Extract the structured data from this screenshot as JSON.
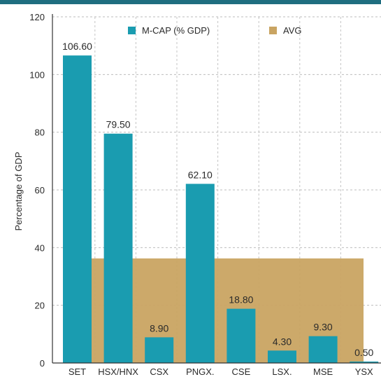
{
  "chart_data": {
    "type": "bar",
    "title": "",
    "xlabel": "",
    "ylabel": "Percentage of GDP",
    "ylim": [
      0,
      120
    ],
    "yticks": [
      0,
      20,
      40,
      60,
      80,
      100,
      120
    ],
    "grid": true,
    "legend_position": "top",
    "categories": [
      "SET",
      "HSX/HNX",
      "CSX",
      "PNGX.",
      "CSE",
      "LSX.",
      "MSE",
      "YSX"
    ],
    "series": [
      {
        "name": "M-CAP (% GDP)",
        "color": "#1a9cb0",
        "values": [
          106.6,
          79.5,
          8.9,
          62.1,
          18.8,
          4.3,
          9.3,
          0.5
        ],
        "labels": [
          "106.60",
          "79.50",
          "8.90",
          "62.10",
          "18.80",
          "4.30",
          "9.30",
          "0.50"
        ]
      },
      {
        "name": "AVG",
        "color": "#c9a462",
        "value": 36.25
      }
    ]
  }
}
